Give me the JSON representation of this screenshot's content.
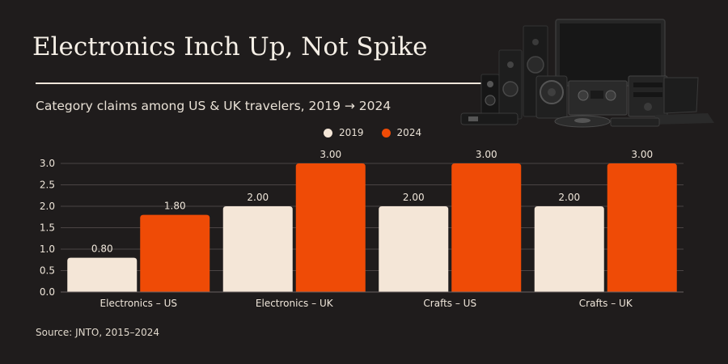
{
  "header": {
    "title": "Electronics Inch Up, Not Spike",
    "subtitle": "Category claims among US & UK travelers, 2019 → 2024"
  },
  "footer": {
    "source": "Source: JNTO, 2015–2024"
  },
  "colors": {
    "background": "#1f1c1c",
    "series_2019": "#f4e6d7",
    "series_2024": "#ef4b06",
    "text": "#efe6da",
    "grid": "#4a4444"
  },
  "hero_image": {
    "icon": "electronics-devices-illustration"
  },
  "chart_data": {
    "type": "bar",
    "categories": [
      "Electronics – US",
      "Electronics – UK",
      "Crafts – US",
      "Crafts – UK"
    ],
    "series": [
      {
        "name": "2019",
        "values": [
          0.8,
          2.0,
          2.0,
          2.0
        ],
        "labels": [
          "0.80",
          "2.00",
          "2.00",
          "2.00"
        ]
      },
      {
        "name": "2024",
        "values": [
          1.8,
          3.0,
          3.0,
          3.0
        ],
        "labels": [
          "1.80",
          "3.00",
          "3.00",
          "3.00"
        ]
      }
    ],
    "yticks": [
      "0.0",
      "0.5",
      "1.0",
      "1.5",
      "2.0",
      "2.5",
      "3.0"
    ],
    "ylim": [
      0,
      3.0
    ],
    "grid": true,
    "legend_position": "top-center"
  }
}
